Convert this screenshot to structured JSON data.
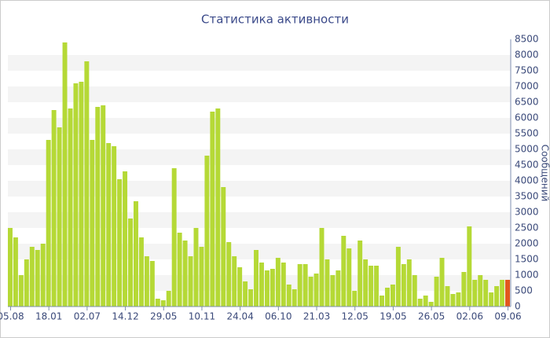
{
  "chart_data": {
    "type": "bar",
    "title": "Статистика активности",
    "y_label": "Сообщений",
    "categories": [
      "05.08",
      null,
      null,
      null,
      null,
      null,
      null,
      "18.01",
      null,
      null,
      null,
      null,
      null,
      null,
      "02.07",
      null,
      null,
      null,
      null,
      null,
      null,
      "14.12",
      null,
      null,
      null,
      null,
      null,
      null,
      "29.05",
      null,
      null,
      null,
      null,
      null,
      null,
      "10.11",
      null,
      null,
      null,
      null,
      null,
      null,
      "24.04",
      null,
      null,
      null,
      null,
      null,
      null,
      "06.10",
      null,
      null,
      null,
      null,
      null,
      null,
      "21.03",
      null,
      null,
      null,
      null,
      null,
      null,
      "12.05",
      null,
      null,
      null,
      null,
      null,
      null,
      "19.05",
      null,
      null,
      null,
      null,
      null,
      null,
      "26.05",
      null,
      null,
      null,
      null,
      null,
      null,
      "02.06",
      null,
      null,
      null,
      null,
      null,
      null,
      "09.06"
    ],
    "values": [
      2500,
      2200,
      1000,
      1500,
      1900,
      1800,
      2000,
      5300,
      6250,
      5700,
      8400,
      6300,
      7100,
      7150,
      7800,
      5300,
      6350,
      6400,
      5200,
      5100,
      4050,
      4300,
      2800,
      3350,
      2200,
      1600,
      1450,
      250,
      200,
      500,
      4400,
      2350,
      2100,
      1600,
      2500,
      1900,
      4800,
      6200,
      6300,
      3800,
      2050,
      1600,
      1250,
      800,
      550,
      1800,
      1400,
      1150,
      1200,
      1550,
      1400,
      700,
      550,
      1350,
      1350,
      950,
      1050,
      2500,
      1500,
      1000,
      1150,
      2250,
      1850,
      500,
      2100,
      1500,
      1300,
      1300,
      350,
      600,
      700,
      1900,
      1350,
      1500,
      1000,
      250,
      350,
      150,
      950,
      1550,
      650,
      400,
      450,
      1100,
      2550,
      850,
      1000,
      850,
      450,
      650,
      850,
      850
    ],
    "color": "#b5d936",
    "last_color": "#e2571e",
    "ylim": [
      0,
      8500
    ],
    "yticks": [
      0,
      500,
      1000,
      1500,
      2000,
      2500,
      3000,
      3500,
      4000,
      4500,
      5000,
      5500,
      6000,
      6500,
      7000,
      7500,
      8000,
      8500
    ],
    "grid": "bands"
  }
}
